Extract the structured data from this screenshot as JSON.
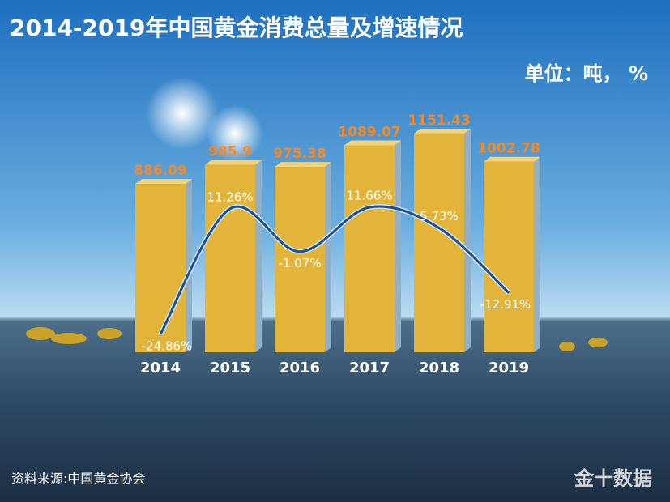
{
  "chart_data": {
    "type": "bar",
    "title": "2014-2019年中国黄金消费总量及增速情况",
    "unit_label": "单位：吨， %",
    "source": "资料来源:中国黄金协会",
    "watermark": "金十数据",
    "categories": [
      "2014",
      "2015",
      "2016",
      "2017",
      "2018",
      "2019"
    ],
    "ylim": [
      0,
      1300
    ],
    "y2lim": [
      -30,
      41
    ],
    "series": [
      {
        "type": "bar",
        "color": "#e2b43a",
        "label_color": "#f08a2a",
        "values": [
          886.09,
          985.9,
          975.38,
          1089.07,
          1151.43,
          1002.78
        ]
      },
      {
        "type": "line",
        "axis": "y2",
        "color": "#1f4f8f",
        "values": [
          -24.86,
          11.26,
          -1.07,
          11.66,
          5.73,
          -12.91
        ],
        "value_labels": [
          "-24.86%",
          "11.26%",
          "-1.07%",
          "11.66%",
          "5.73%",
          "-12.91%"
        ]
      }
    ]
  }
}
